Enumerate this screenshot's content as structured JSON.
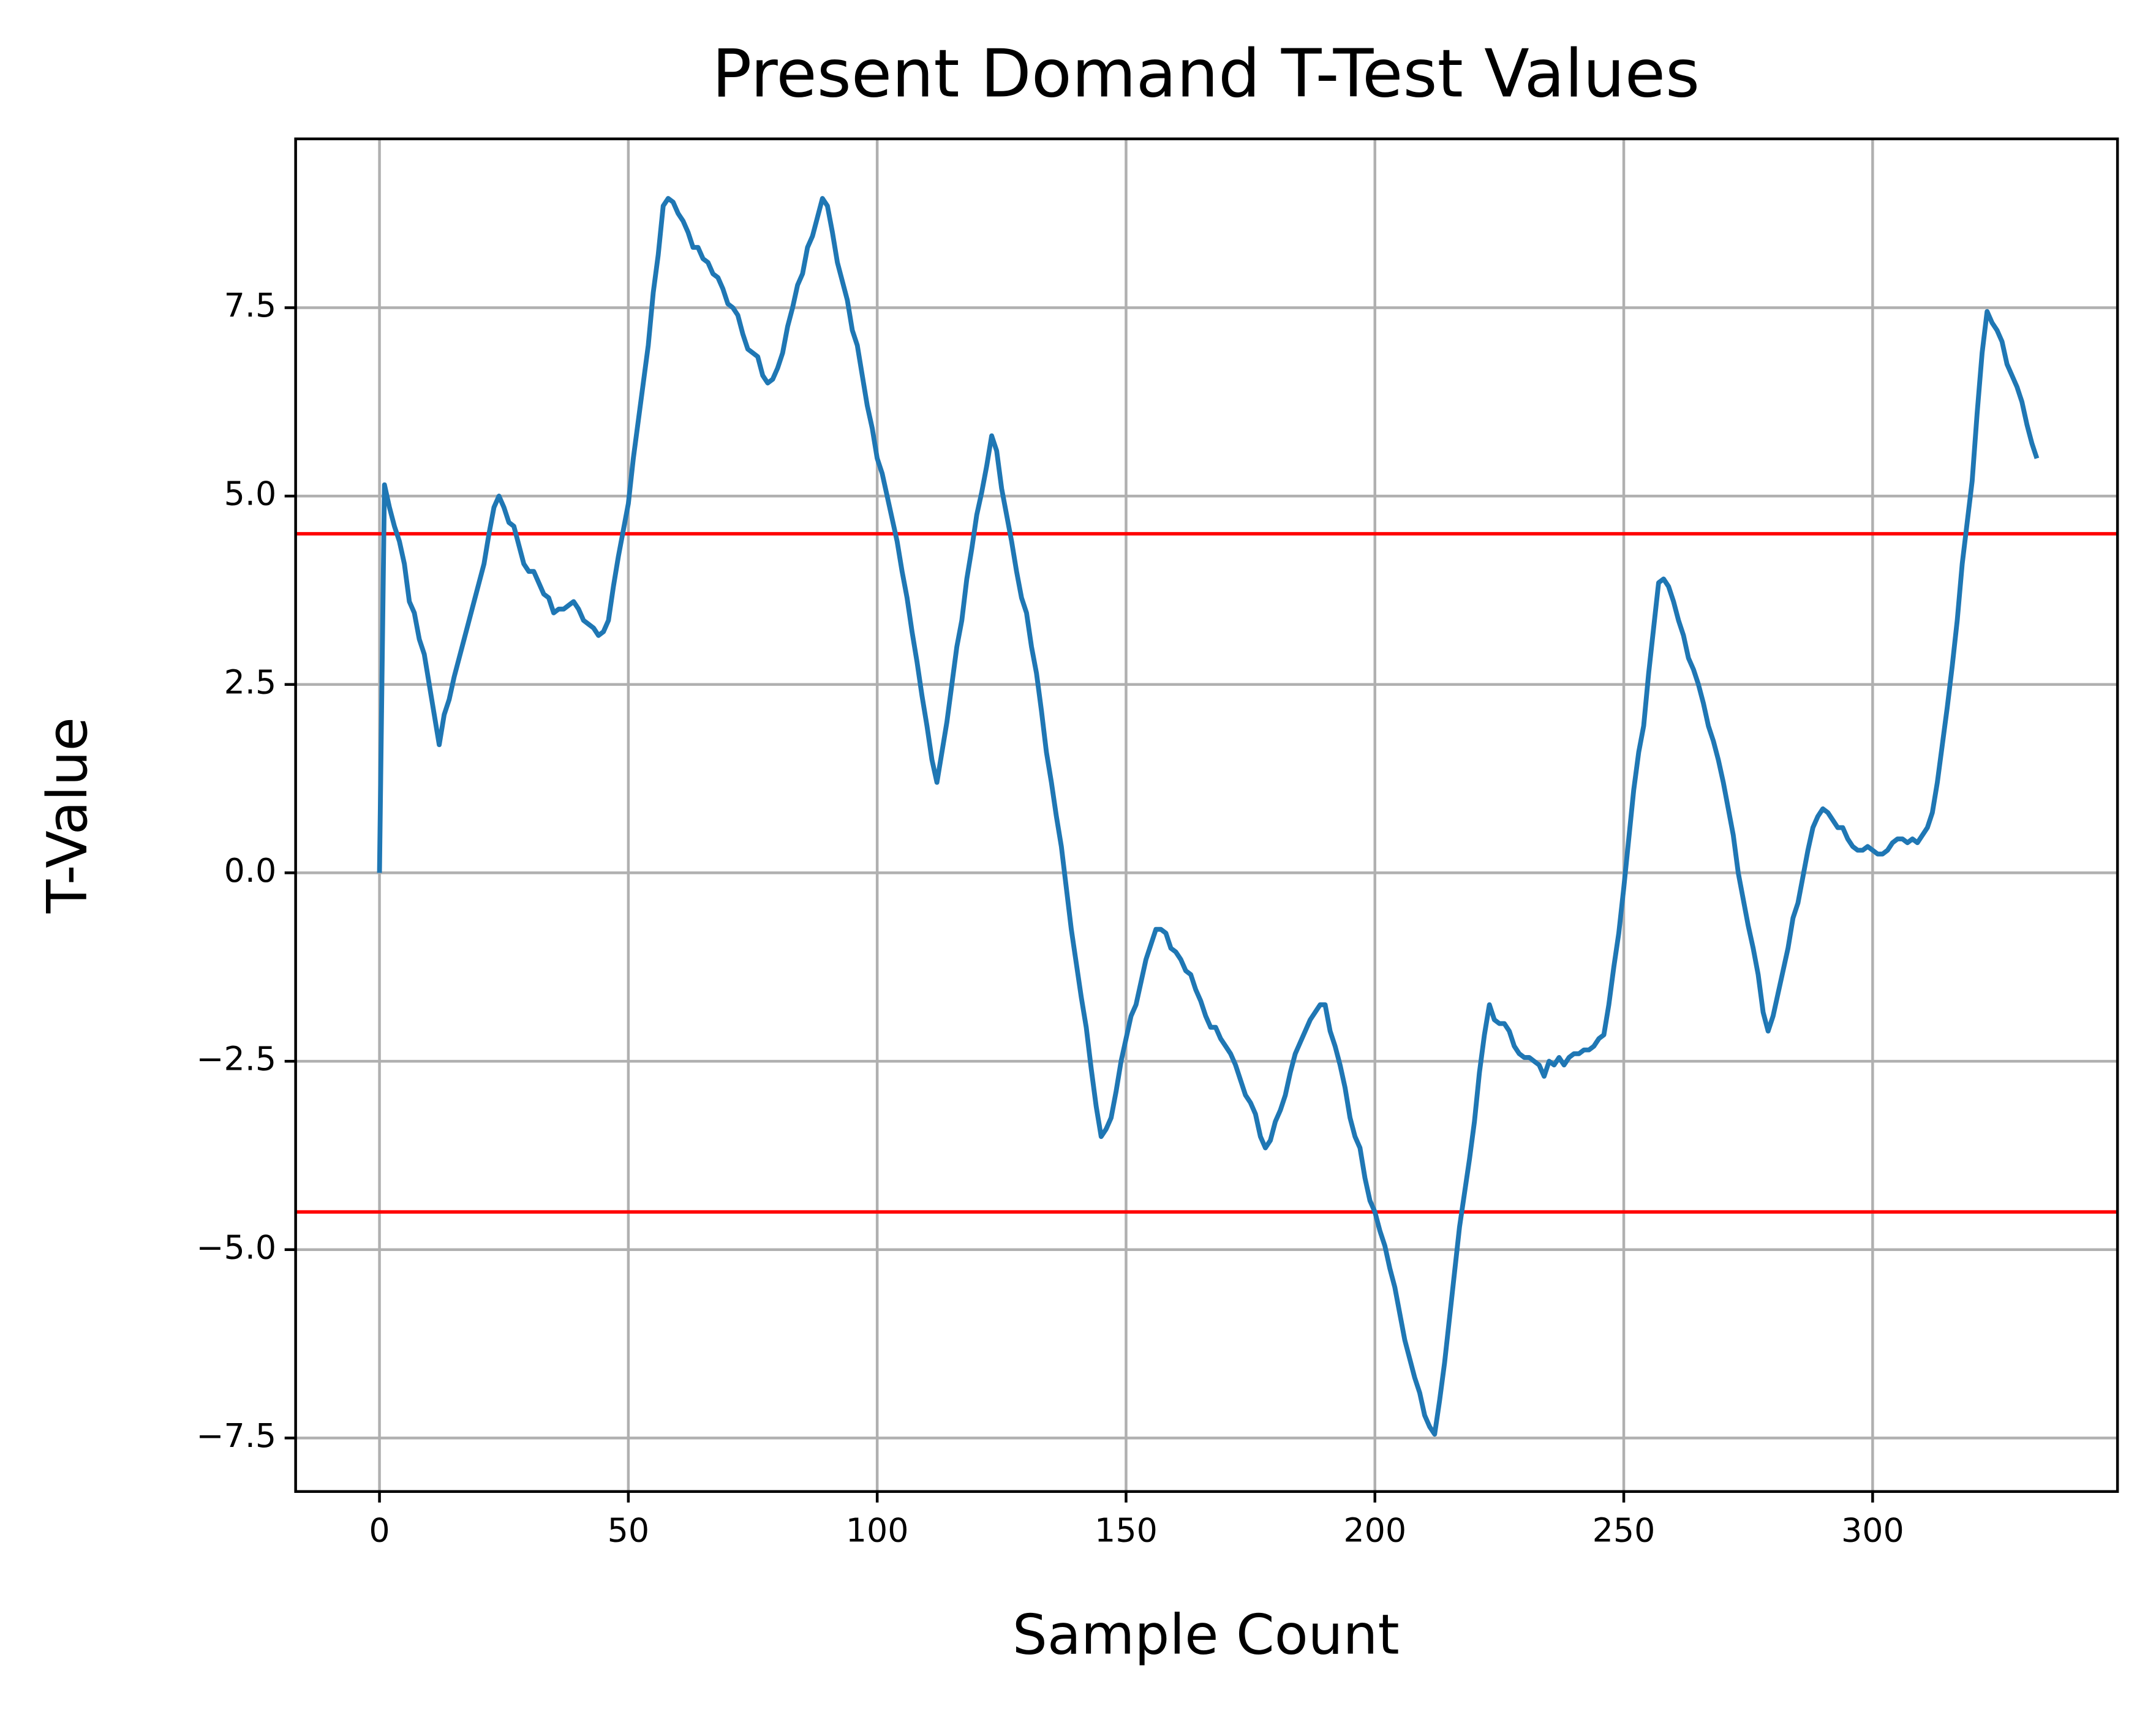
{
  "chart_data": {
    "type": "line",
    "title": "Present Domand T-Test Values",
    "xlabel": "Sample Count",
    "ylabel": "T-Value",
    "xlim": [
      -16.85,
      349.2
    ],
    "ylim": [
      -8.21,
      9.74
    ],
    "xticks": [
      0,
      50,
      100,
      150,
      200,
      250,
      300
    ],
    "yticks": [
      {
        "value": -7.5,
        "label": "−7.5"
      },
      {
        "value": -5,
        "label": "−5.0"
      },
      {
        "value": -2.5,
        "label": "−2.5"
      },
      {
        "value": 0,
        "label": "0.0"
      },
      2.5,
      {
        "value": 5,
        "label": "5.0"
      },
      7.5
    ],
    "grid": true,
    "reference_lines": [
      4.5,
      -4.5
    ],
    "reference_color": "#ff0000",
    "series": [
      {
        "color": "#1f77b4",
        "x": [
          0,
          1,
          2,
          3,
          4,
          5,
          6,
          7,
          8,
          9,
          10,
          11,
          12,
          13,
          14,
          15,
          16,
          17,
          18,
          19,
          20,
          21,
          22,
          23,
          24,
          25,
          26,
          27,
          28,
          29,
          30,
          31,
          32,
          33,
          34,
          35,
          36,
          37,
          38,
          39,
          40,
          41,
          42,
          43,
          44,
          45,
          46,
          47,
          48,
          49,
          50,
          51,
          52,
          53,
          54,
          55,
          56,
          57,
          58,
          59,
          60,
          61,
          62,
          63,
          64,
          65,
          66,
          67,
          68,
          69,
          70,
          71,
          72,
          73,
          74,
          75,
          76,
          77,
          78,
          79,
          80,
          81,
          82,
          83,
          84,
          85,
          86,
          87,
          88,
          89,
          90,
          91,
          92,
          93,
          94,
          95,
          96,
          97,
          98,
          99,
          100,
          101,
          102,
          103,
          104,
          105,
          106,
          107,
          108,
          109,
          110,
          111,
          112,
          113,
          114,
          115,
          116,
          117,
          118,
          119,
          120,
          121,
          122,
          123,
          124,
          125,
          126,
          127,
          128,
          129,
          130,
          131,
          132,
          133,
          134,
          135,
          136,
          137,
          138,
          139,
          140,
          141,
          142,
          143,
          144,
          145,
          146,
          147,
          148,
          149,
          150,
          151,
          152,
          153,
          154,
          155,
          156,
          157,
          158,
          159,
          160,
          161,
          162,
          163,
          164,
          165,
          166,
          167,
          168,
          169,
          170,
          171,
          172,
          173,
          174,
          175,
          176,
          177,
          178,
          179,
          180,
          181,
          182,
          183,
          184,
          185,
          186,
          187,
          188,
          189,
          190,
          191,
          192,
          193,
          194,
          195,
          196,
          197,
          198,
          199,
          200,
          201,
          202,
          203,
          204,
          205,
          206,
          207,
          208,
          209,
          210,
          211,
          212,
          213,
          214,
          215,
          216,
          217,
          218,
          219,
          220,
          221,
          222,
          223,
          224,
          225,
          226,
          227,
          228,
          229,
          230,
          231,
          232,
          233,
          234,
          235,
          236,
          237,
          238,
          239,
          240,
          241,
          242,
          243,
          244,
          245,
          246,
          247,
          248,
          249,
          250,
          251,
          252,
          253,
          254,
          255,
          256,
          257,
          258,
          259,
          260,
          261,
          262,
          263,
          264,
          265,
          266,
          267,
          268,
          269,
          270,
          271,
          272,
          273,
          274,
          275,
          276,
          277,
          278,
          279,
          280,
          281,
          282,
          283,
          284,
          285,
          286,
          287,
          288,
          289,
          290,
          291,
          292,
          293,
          294,
          295,
          296,
          297,
          298,
          299,
          300,
          301,
          302,
          303,
          304,
          305,
          306,
          307,
          308,
          309,
          310,
          311,
          312,
          313,
          314,
          315,
          316,
          317,
          318,
          319,
          320,
          321,
          322,
          323,
          324,
          325,
          326,
          327,
          328,
          329,
          330,
          331,
          332,
          333
        ],
        "values": [
          0,
          5.15,
          4.85,
          4.6,
          4.4,
          4.1,
          3.6,
          3.45,
          3.1,
          2.9,
          2.5,
          2.1,
          1.7,
          2.1,
          2.3,
          2.6,
          2.85,
          3.1,
          3.35,
          3.6,
          3.85,
          4.1,
          4.5,
          4.85,
          5.0,
          4.85,
          4.65,
          4.6,
          4.35,
          4.1,
          4.0,
          4.0,
          3.85,
          3.7,
          3.65,
          3.45,
          3.5,
          3.5,
          3.55,
          3.6,
          3.5,
          3.35,
          3.3,
          3.25,
          3.15,
          3.2,
          3.35,
          3.8,
          4.2,
          4.55,
          4.9,
          5.5,
          6.0,
          6.5,
          7.0,
          7.7,
          8.2,
          8.85,
          8.95,
          8.9,
          8.75,
          8.65,
          8.5,
          8.3,
          8.3,
          8.15,
          8.1,
          7.95,
          7.9,
          7.75,
          7.55,
          7.5,
          7.4,
          7.15,
          6.95,
          6.9,
          6.85,
          6.6,
          6.5,
          6.55,
          6.7,
          6.9,
          7.25,
          7.5,
          7.8,
          7.95,
          8.3,
          8.45,
          8.7,
          8.95,
          8.85,
          8.5,
          8.1,
          7.85,
          7.6,
          7.2,
          7.0,
          6.6,
          6.2,
          5.9,
          5.5,
          5.3,
          5.0,
          4.7,
          4.4,
          4.0,
          3.65,
          3.2,
          2.8,
          2.35,
          1.95,
          1.5,
          1.2,
          1.6,
          2.0,
          2.5,
          3.0,
          3.35,
          3.9,
          4.3,
          4.75,
          5.05,
          5.4,
          5.8,
          5.6,
          5.1,
          4.75,
          4.4,
          4.0,
          3.65,
          3.45,
          3.0,
          2.65,
          2.15,
          1.6,
          1.2,
          0.75,
          0.35,
          -0.2,
          -0.75,
          -1.2,
          -1.65,
          -2.05,
          -2.6,
          -3.1,
          -3.5,
          -3.4,
          -3.25,
          -2.9,
          -2.5,
          -2.2,
          -1.9,
          -1.75,
          -1.45,
          -1.15,
          -0.95,
          -0.75,
          -0.75,
          -0.8,
          -1.0,
          -1.05,
          -1.15,
          -1.3,
          -1.35,
          -1.55,
          -1.7,
          -1.9,
          -2.05,
          -2.05,
          -2.2,
          -2.3,
          -2.4,
          -2.55,
          -2.75,
          -2.95,
          -3.05,
          -3.2,
          -3.5,
          -3.65,
          -3.55,
          -3.3,
          -3.15,
          -2.95,
          -2.65,
          -2.4,
          -2.25,
          -2.1,
          -1.95,
          -1.85,
          -1.75,
          -1.75,
          -2.1,
          -2.3,
          -2.55,
          -2.85,
          -3.25,
          -3.5,
          -3.65,
          -4.05,
          -4.35,
          -4.5,
          -4.75,
          -4.95,
          -5.25,
          -5.5,
          -5.85,
          -6.2,
          -6.45,
          -6.7,
          -6.9,
          -7.2,
          -7.35,
          -7.45,
          -7.0,
          -6.5,
          -5.9,
          -5.3,
          -4.7,
          -4.25,
          -3.8,
          -3.3,
          -2.65,
          -2.15,
          -1.75,
          -1.95,
          -2.0,
          -2.0,
          -2.1,
          -2.3,
          -2.4,
          -2.45,
          -2.45,
          -2.5,
          -2.55,
          -2.7,
          -2.5,
          -2.55,
          -2.45,
          -2.55,
          -2.45,
          -2.4,
          -2.4,
          -2.35,
          -2.35,
          -2.3,
          -2.2,
          -2.15,
          -1.75,
          -1.25,
          -0.8,
          -0.2,
          0.45,
          1.1,
          1.6,
          1.95,
          2.65,
          3.25,
          3.85,
          3.9,
          3.8,
          3.6,
          3.35,
          3.15,
          2.85,
          2.7,
          2.5,
          2.25,
          1.95,
          1.75,
          1.5,
          1.2,
          0.85,
          0.5,
          0.0,
          -0.35,
          -0.7,
          -1.0,
          -1.35,
          -1.85,
          -2.1,
          -1.9,
          -1.6,
          -1.3,
          -1.0,
          -0.6,
          -0.4,
          -0.05,
          0.3,
          0.6,
          0.75,
          0.85,
          0.8,
          0.7,
          0.6,
          0.6,
          0.45,
          0.35,
          0.3,
          0.3,
          0.35,
          0.3,
          0.25,
          0.25,
          0.3,
          0.4,
          0.45,
          0.45,
          0.4,
          0.45,
          0.4,
          0.5,
          0.6,
          0.8,
          1.2,
          1.7,
          2.2,
          2.75,
          3.35,
          4.1,
          4.65,
          5.2,
          6.1,
          6.9,
          7.45,
          7.3,
          7.2,
          7.05,
          6.75,
          6.6,
          6.45,
          6.25,
          5.95,
          5.7,
          5.5
        ]
      }
    ]
  }
}
